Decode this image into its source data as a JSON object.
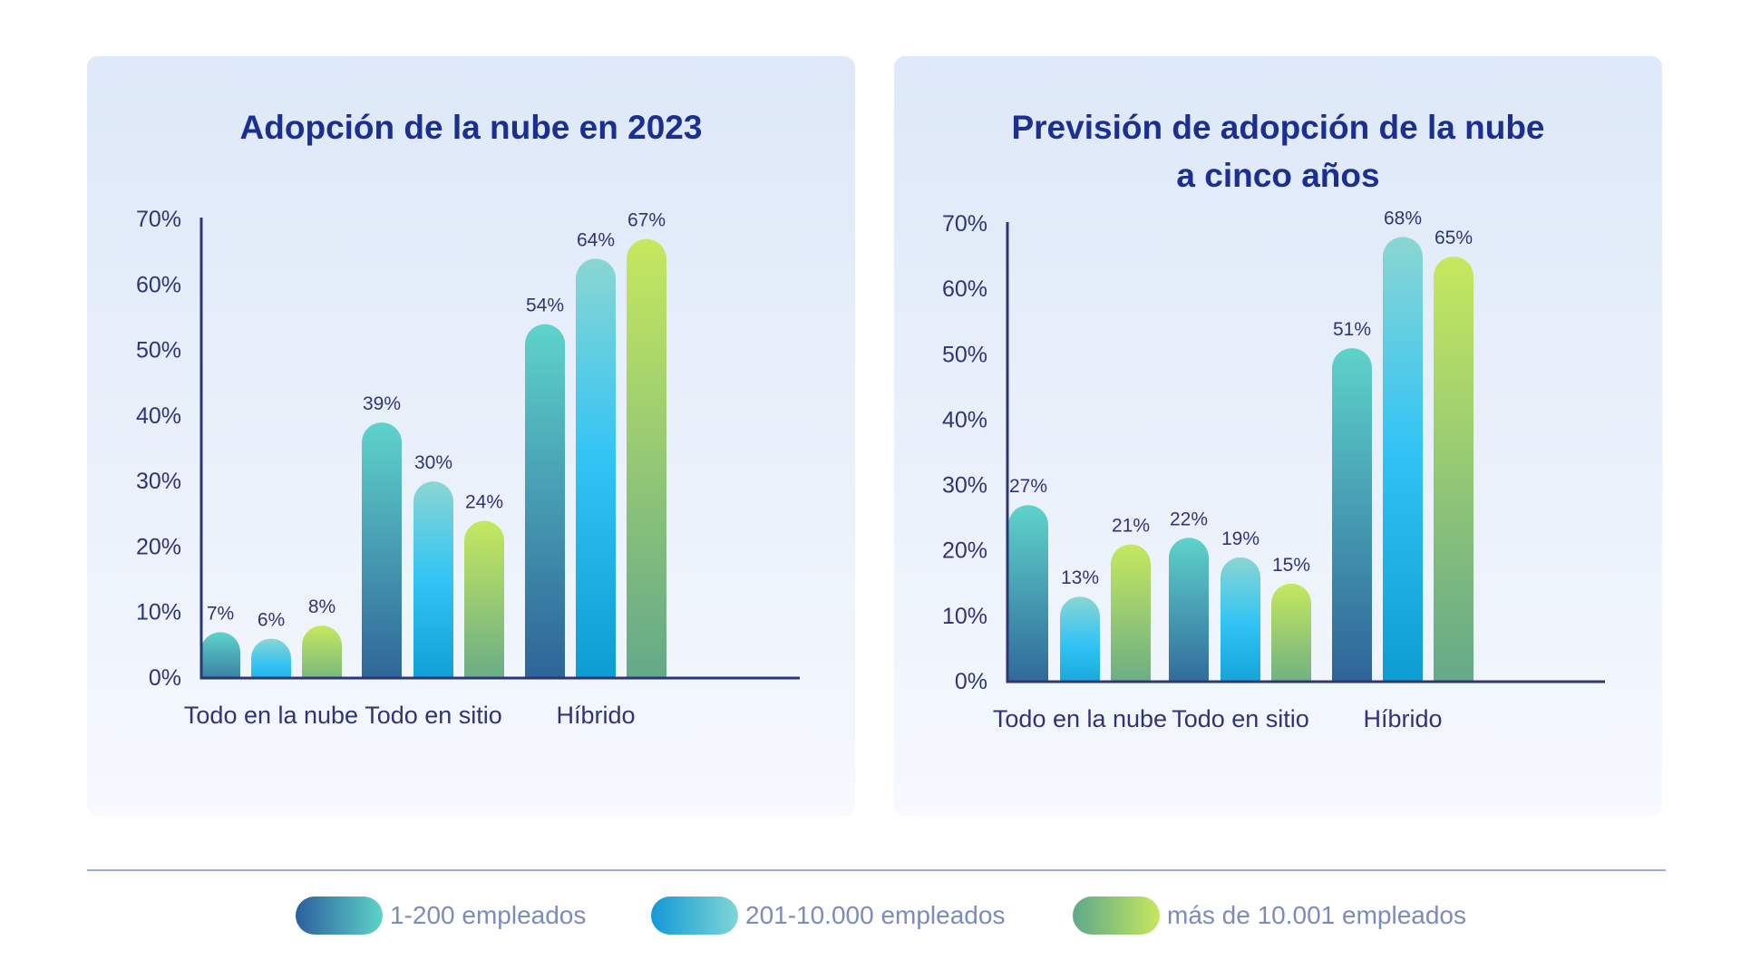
{
  "chart_data": [
    {
      "type": "bar",
      "title": "Adopción de la nube en 2023",
      "categories": [
        "Todo en la nube",
        "Todo en sitio",
        "Híbrido"
      ],
      "series": [
        {
          "name": "1-200 empleados",
          "values": [
            7,
            39,
            54
          ]
        },
        {
          "name": "201-10.000 empleados",
          "values": [
            6,
            30,
            64
          ]
        },
        {
          "name": "más de 10.001 empleados",
          "values": [
            8,
            24,
            67
          ]
        }
      ],
      "data_labels": [
        [
          "7%",
          "6%",
          "8%"
        ],
        [
          "39%",
          "30%",
          "24%"
        ],
        [
          "54%",
          "64%",
          "67%"
        ]
      ],
      "yticks": [
        "0%",
        "10%",
        "20%",
        "30%",
        "40%",
        "50%",
        "60%",
        "70%"
      ],
      "ylim": [
        0,
        70
      ],
      "grid": false,
      "legend": "bottom"
    },
    {
      "type": "bar",
      "title": "Previsión de adopción de la nube a cinco años",
      "title_lines": [
        "Previsión de adopción de la nube",
        "a cinco años"
      ],
      "categories": [
        "Todo en la nube",
        "Todo en sitio",
        "Híbrido"
      ],
      "series": [
        {
          "name": "1-200 empleados",
          "values": [
            27,
            22,
            51
          ]
        },
        {
          "name": "201-10.000 empleados",
          "values": [
            13,
            19,
            68
          ]
        },
        {
          "name": "más de 10.001 empleados",
          "values": [
            21,
            15,
            65
          ]
        }
      ],
      "data_labels": [
        [
          "27%",
          "13%",
          "21%"
        ],
        [
          "22%",
          "19%",
          "15%"
        ],
        [
          "51%",
          "68%",
          "65%"
        ]
      ],
      "yticks": [
        "0%",
        "10%",
        "20%",
        "30%",
        "40%",
        "50%",
        "60%",
        "70%"
      ],
      "ylim": [
        0,
        70
      ],
      "grid": false,
      "legend": "bottom"
    }
  ],
  "legend": {
    "items": [
      {
        "label": "1-200 empleados",
        "colors": [
          "#2a5f9e",
          "#5fd3c8"
        ]
      },
      {
        "label": "201-10.000 empleados",
        "colors": [
          "#1499d6",
          "#7fd6d6"
        ]
      },
      {
        "label": "más de 10.001 empleados",
        "colors": [
          "#5fa88a",
          "#c6e85e"
        ]
      }
    ]
  },
  "colors": {
    "title": "#1a2f8f",
    "axis": "#2e3575",
    "tick_text": "#2e3575",
    "label_text": "#2e3575",
    "legend_text": "#7c8bbd",
    "series_1_top": "#5ed3cb",
    "series_1_bottom": "#2b5d95",
    "series_2_top": "#8ad6d2",
    "series_2_mid": "#33c4f5",
    "series_2_bottom": "#0a99d0",
    "series_3_top": "#c6e85e",
    "series_3_bottom": "#5fa68c"
  }
}
